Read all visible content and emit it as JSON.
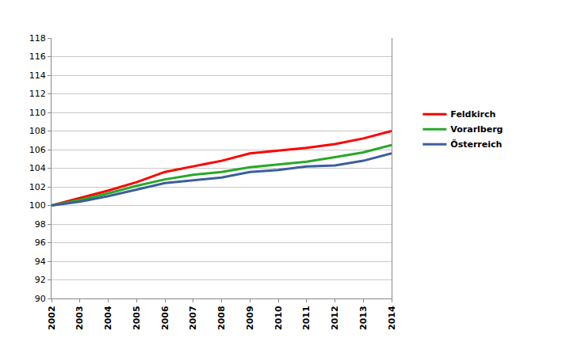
{
  "chart_data": {
    "type": "line",
    "categories": [
      "2002",
      "2003",
      "2004",
      "2005",
      "2006",
      "2007",
      "2008",
      "2009",
      "2010",
      "2011",
      "2012",
      "2013",
      "2014"
    ],
    "series": [
      {
        "name": "Feldkirch",
        "color": "#ff0000",
        "values": [
          100,
          100.8,
          101.6,
          102.5,
          103.6,
          104.2,
          104.8,
          105.6,
          105.9,
          106.2,
          106.6,
          107.2,
          108.0
        ]
      },
      {
        "name": "Vorarlberg",
        "color": "#27a827",
        "values": [
          100,
          100.6,
          101.3,
          102.1,
          102.8,
          103.3,
          103.6,
          104.1,
          104.4,
          104.7,
          105.2,
          105.7,
          106.5
        ]
      },
      {
        "name": "Österreich",
        "color": "#3a5f9c",
        "values": [
          100,
          100.4,
          101.0,
          101.7,
          102.4,
          102.7,
          103.0,
          103.6,
          103.8,
          104.2,
          104.3,
          104.8,
          105.6
        ]
      }
    ],
    "ylim": [
      90,
      118
    ],
    "yticks": [
      90,
      92,
      94,
      96,
      98,
      100,
      102,
      104,
      106,
      108,
      110,
      112,
      114,
      116,
      118
    ],
    "grid": true,
    "legend": "right"
  }
}
